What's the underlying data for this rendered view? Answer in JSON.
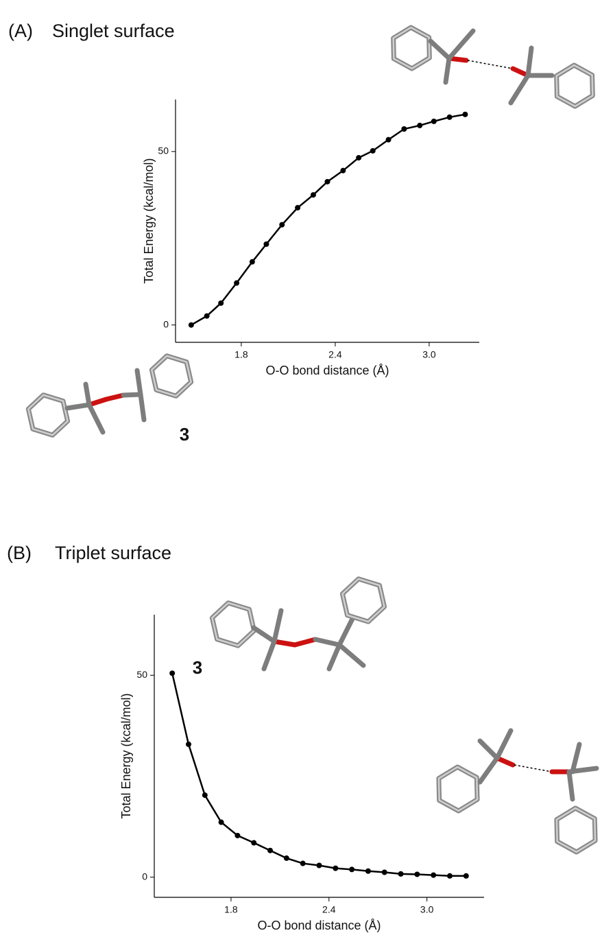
{
  "chart_data": [
    {
      "type": "line",
      "panel_label": "(A)",
      "title": "Singlet surface",
      "annotation": "3",
      "x_label": "O-O bond distance (Å)",
      "y_label": "Total Energy (kcal/mol)",
      "color": "#000000",
      "x": [
        1.48,
        1.58,
        1.67,
        1.77,
        1.87,
        1.96,
        2.06,
        2.16,
        2.26,
        2.35,
        2.45,
        2.55,
        2.64,
        2.74,
        2.84,
        2.94,
        3.03,
        3.13,
        3.23
      ],
      "values": [
        0,
        2.6,
        6.3,
        12.1,
        18.2,
        23.3,
        28.9,
        33.8,
        37.5,
        41.3,
        44.5,
        48.2,
        50.2,
        53.4,
        56.5,
        57.5,
        58.7,
        59.9,
        60.7
      ],
      "xlim": [
        1.38,
        3.32
      ],
      "ylim": [
        -5,
        65
      ],
      "xticks": [
        1.8,
        2.4,
        {
          "value": 3,
          "label": "3.0"
        }
      ],
      "yticks": [
        0,
        50
      ]
    },
    {
      "type": "line",
      "panel_label": "(B)",
      "title": "Triplet surface",
      "annotation": "3",
      "x_label": "O-O bond distance (Å)",
      "y_label": "Total Energy (kcal/mol)",
      "color": "#000000",
      "x": [
        1.44,
        1.54,
        1.64,
        1.74,
        1.84,
        1.94,
        2.04,
        2.14,
        2.24,
        2.34,
        2.44,
        2.54,
        2.64,
        2.74,
        2.84,
        2.94,
        3.04,
        3.14,
        3.24
      ],
      "values": [
        50.5,
        32.9,
        20.3,
        13.6,
        10.3,
        8.5,
        6.6,
        4.7,
        3.4,
        2.9,
        2.2,
        1.9,
        1.5,
        1.2,
        0.8,
        0.7,
        0.5,
        0.3,
        0.3
      ],
      "xlim": [
        1.33,
        3.35
      ],
      "ylim": [
        -5,
        65
      ],
      "xticks": [
        1.8,
        2.4,
        {
          "value": 3,
          "label": "3.0"
        }
      ],
      "yticks": [
        0,
        50
      ]
    }
  ]
}
